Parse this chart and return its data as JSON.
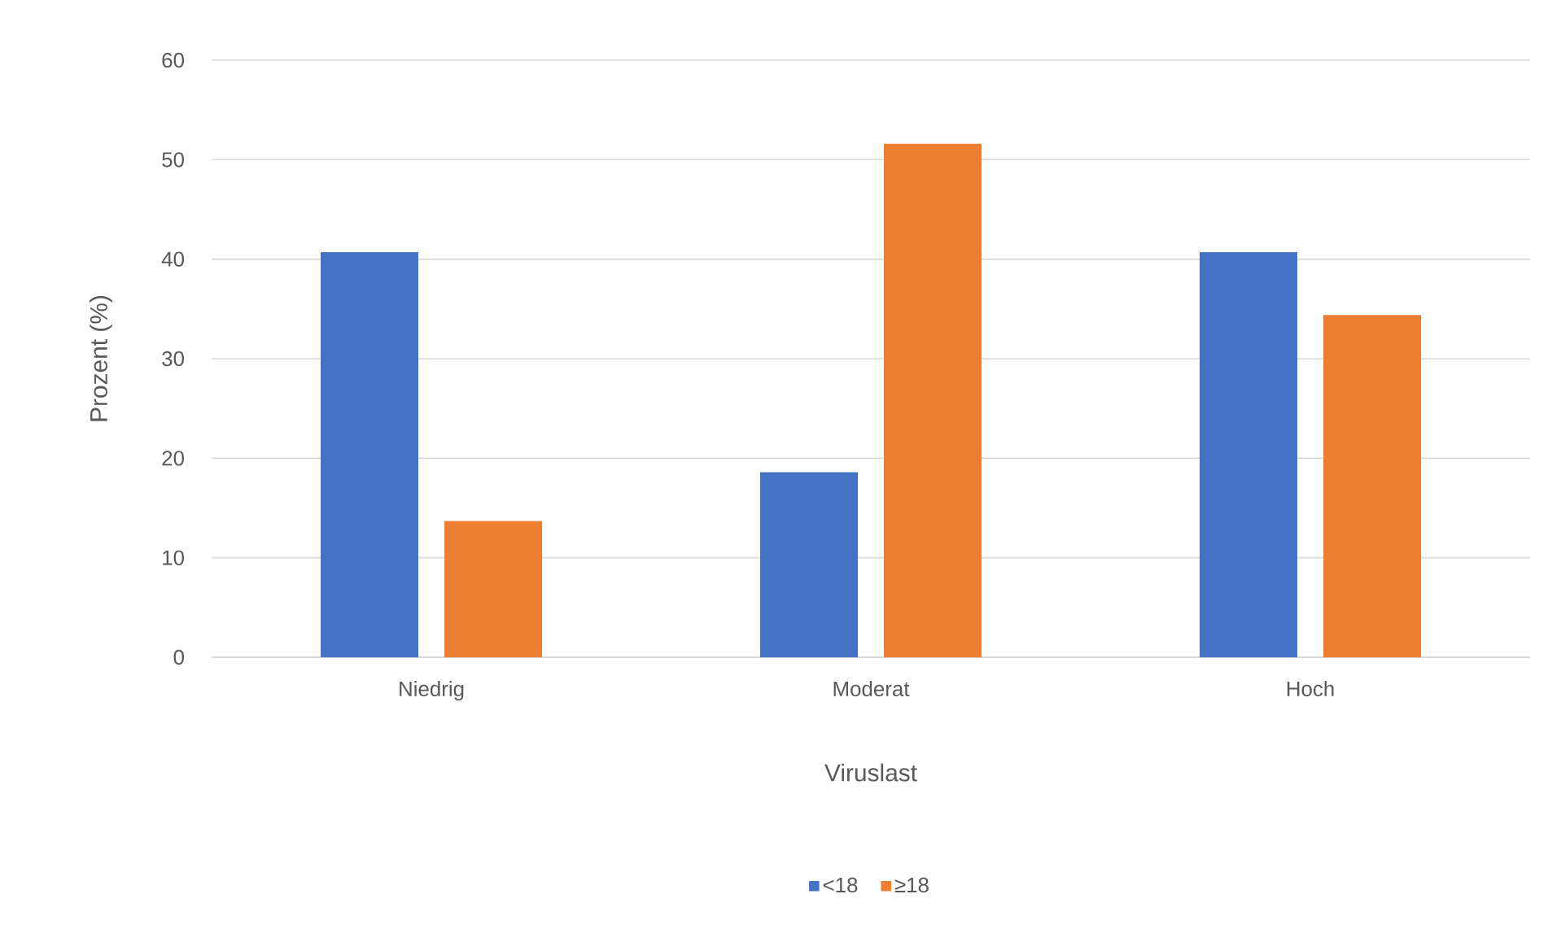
{
  "chart_data": {
    "type": "bar",
    "xlabel": "Viruslast",
    "ylabel": "Prozent (%)",
    "categories": [
      "Niedrig",
      "Moderat",
      "Hoch"
    ],
    "series": [
      {
        "name": "<18",
        "color": "#4472c4",
        "values": [
          40.7,
          18.6,
          40.7
        ]
      },
      {
        "name": "≥18",
        "color": "#ed7d31",
        "values": [
          13.7,
          51.6,
          34.4
        ]
      }
    ],
    "ylim": [
      0,
      60
    ],
    "yticks": [
      0,
      10,
      20,
      30,
      40,
      50,
      60
    ],
    "grid": "y",
    "legend": "bottom"
  }
}
